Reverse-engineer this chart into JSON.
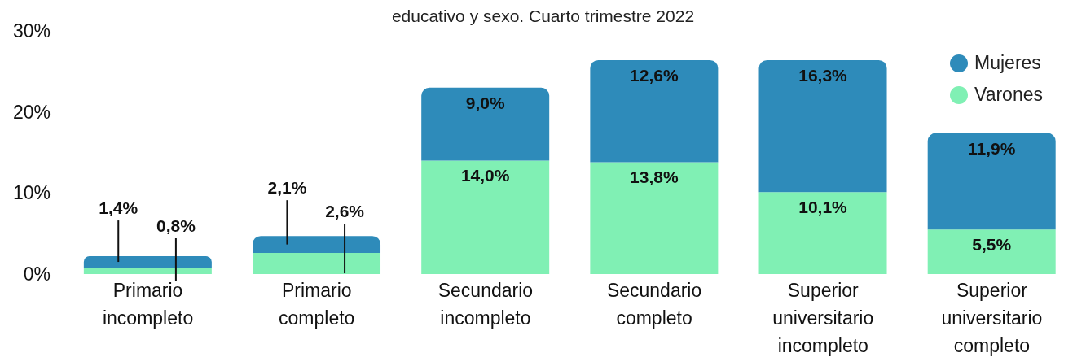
{
  "chart_data": {
    "type": "bar",
    "title": "educativo y sexo. Cuarto trimestre 2022",
    "categories": [
      "Primario incompleto",
      "Primario completo",
      "Secundario incompleto",
      "Secundario completo",
      "Superior universitario incompleto",
      "Superior universitario completo"
    ],
    "stacked": true,
    "series": [
      {
        "name": "Varones",
        "color": "#80f0b4",
        "values": [
          0.8,
          2.6,
          14.0,
          13.8,
          10.1,
          5.5
        ],
        "value_labels": [
          "0,8%",
          "2,6%",
          "14,0%",
          "13,8%",
          "10,1%",
          "5,5%"
        ]
      },
      {
        "name": "Mujeres",
        "color": "#2e8bba",
        "values": [
          1.4,
          2.1,
          9.0,
          12.6,
          16.3,
          11.9
        ],
        "value_labels": [
          "1,4%",
          "2,1%",
          "9,0%",
          "12,6%",
          "16,3%",
          "11,9%"
        ]
      }
    ],
    "ylim": [
      0,
      30
    ],
    "yticks": [
      {
        "value": 0,
        "label": "0%"
      },
      {
        "value": 10,
        "label": "10%"
      },
      {
        "value": 20,
        "label": "20%"
      },
      {
        "value": 30,
        "label": "30%"
      }
    ],
    "grid": false,
    "legend": "top right"
  }
}
